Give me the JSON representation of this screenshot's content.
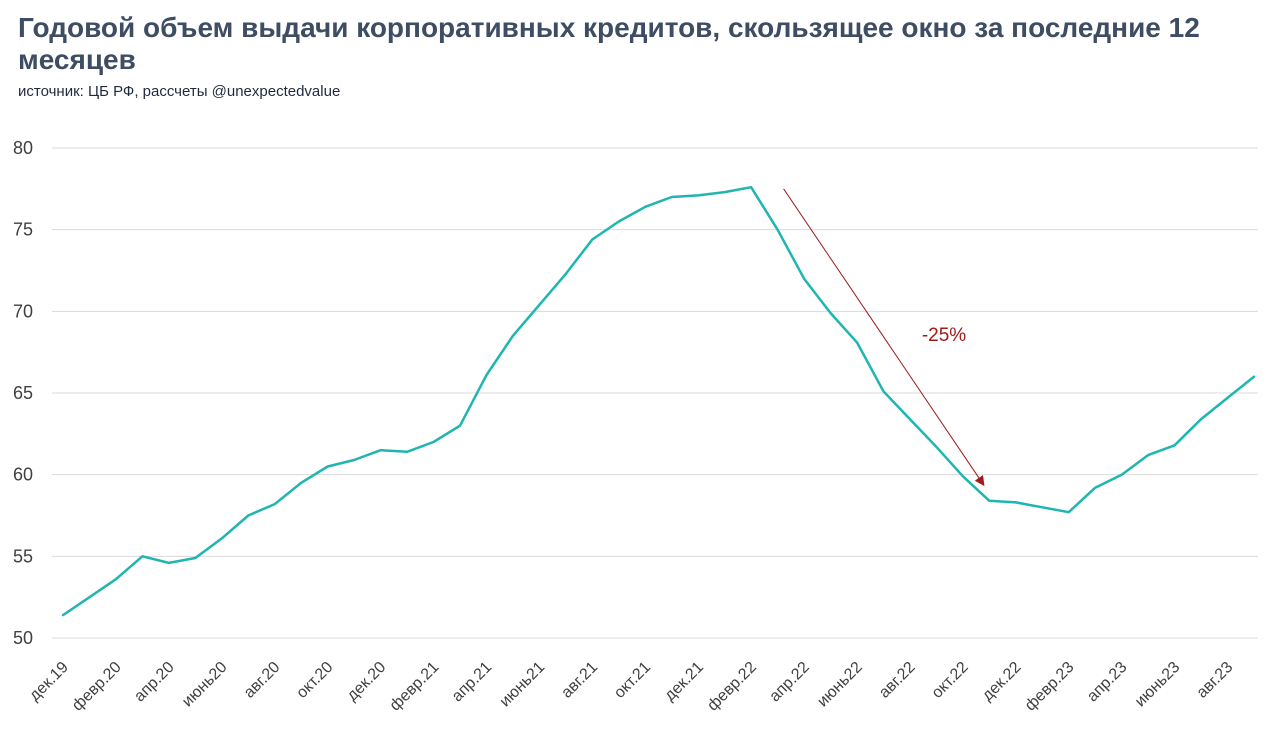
{
  "title": "Годовой объем выдачи корпоративных кредитов, скользящее окно за последние 12 месяцев",
  "subtitle": "источник: ЦБ РФ, рассчеты @unexpectedvalue",
  "chart_data": {
    "type": "line",
    "title": "Годовой объем выдачи корпоративных кредитов, скользящее окно за последние 12 месяцев",
    "xlabel": "",
    "ylabel": "",
    "ylim": [
      50,
      80
    ],
    "yticks": [
      50,
      55,
      60,
      65,
      70,
      75,
      80
    ],
    "grid": true,
    "x": [
      "дек.19",
      "янв.20",
      "февр.20",
      "март20",
      "апр.20",
      "май20",
      "июнь20",
      "июль20",
      "авг.20",
      "сент.20",
      "окт.20",
      "нояб.20",
      "дек.20",
      "янв.21",
      "февр.21",
      "март21",
      "апр.21",
      "май21",
      "июнь21",
      "июль21",
      "авг.21",
      "сент.21",
      "окт.21",
      "нояб.21",
      "дек.21",
      "янв.22",
      "февр.22",
      "март22",
      "апр.22",
      "май22",
      "июнь22",
      "июль22",
      "авг.22",
      "сент.22",
      "окт.22",
      "нояб.22",
      "дек.22",
      "янв.23",
      "февр.23",
      "март23",
      "апр.23",
      "май23",
      "июнь23",
      "июль23",
      "авг.23",
      "сент.23"
    ],
    "tick_labels": [
      "дек.19",
      "февр.20",
      "апр.20",
      "июнь20",
      "авг.20",
      "окт.20",
      "дек.20",
      "февр.21",
      "апр.21",
      "июнь21",
      "авг.21",
      "окт.21",
      "дек.21",
      "февр.22",
      "апр.22",
      "июнь22",
      "авг.22",
      "окт.22",
      "дек.22",
      "февр.23",
      "апр.23",
      "июнь23",
      "авг.23"
    ],
    "series": [
      {
        "color": "#1fb5b0",
        "values": [
          51.4,
          52.5,
          53.6,
          55.0,
          54.6,
          54.9,
          56.1,
          57.5,
          58.2,
          59.5,
          60.5,
          60.9,
          61.5,
          61.4,
          62.0,
          63.0,
          66.1,
          68.5,
          70.4,
          72.3,
          74.4,
          75.5,
          76.4,
          77.0,
          77.1,
          77.3,
          77.6,
          75.0,
          72.0,
          69.9,
          68.1,
          65.1,
          63.4,
          61.7,
          59.9,
          58.4,
          58.3,
          58.0,
          57.7,
          59.2,
          60.0,
          61.2,
          61.8,
          63.4,
          64.7,
          66.0
        ]
      }
    ],
    "annotation": {
      "text": "-25%",
      "color": "#a11a1a",
      "from": {
        "x": "март22",
        "y": 77.5
      },
      "to": {
        "x": "нояб.22",
        "y": 59.4
      }
    }
  }
}
